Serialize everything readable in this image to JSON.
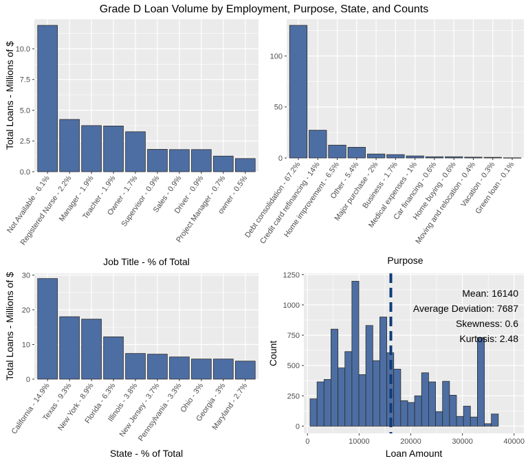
{
  "title": "Grade D Loan Volume by Employment, Purpose, State, and Counts",
  "colors": {
    "bar_fill": "#4d6ea3",
    "bar_stroke": "#2b2b2b",
    "panel_bg": "#ebebeb",
    "grid": "#ffffff",
    "mean_line": "#0f3c7a"
  },
  "chart_data": [
    {
      "type": "bar",
      "categories": [
        "Not Available - 6.1%",
        "Registered Nurse - 2.2%",
        "Manager - 1.9%",
        "Teacher - 1.9%",
        "Owner - 1.7%",
        "Supervisor - 0.9%",
        "Sales - 0.9%",
        "Driver - 0.9%",
        "Project Manager - 0.7%",
        "owner - 0.5%"
      ],
      "values": [
        11.9,
        4.25,
        3.75,
        3.72,
        3.25,
        1.82,
        1.8,
        1.8,
        1.27,
        1.07
      ],
      "xlabel": "Job Title - % of Total",
      "ylabel": "Total Loans - Millions of $",
      "ylim": [
        0,
        12.4
      ],
      "yticks": [
        0,
        2.5,
        5,
        7.5,
        10
      ],
      "ytick_labels": [
        "0.0",
        "2.5",
        "5.0",
        "7.5",
        "10.0"
      ],
      "grid": true
    },
    {
      "type": "bar",
      "categories": [
        "Debt consolidation - 67.2%",
        "Credit card refinancing - 14%",
        "Home improvement - 6.5%",
        "Other - 5.4%",
        "Major purchase - 2%",
        "Business - 1.7%",
        "Medical expenses - 1%",
        "Car financing - 0.6%",
        "Home buying - 0.6%",
        "Moving and relocation - 0.4%",
        "Vacation - 0.3%",
        "Green loan - 0.1%"
      ],
      "values": [
        130,
        27.2,
        12.6,
        10.5,
        3.9,
        3.3,
        2.0,
        1.2,
        1.2,
        0.8,
        0.6,
        0.2
      ],
      "xlabel": "Purpose",
      "ylabel": "",
      "ylim": [
        0,
        136
      ],
      "yticks": [
        0,
        50,
        100
      ],
      "ytick_labels": [
        "0",
        "50",
        "100"
      ],
      "grid": true
    },
    {
      "type": "bar",
      "categories": [
        "California - 14.9%",
        "Texas - 9.3%",
        "New York - 8.9%",
        "Florida - 6.3%",
        "Illinois - 3.8%",
        "New Jersey - 3.7%",
        "Pennsylvania - 3.3%",
        "Ohio - 3%",
        "Georgia - 3%",
        "Maryland - 2.7%"
      ],
      "values": [
        29.0,
        18.0,
        17.3,
        12.2,
        7.4,
        7.2,
        6.4,
        5.8,
        5.8,
        5.2
      ],
      "xlabel": "State - % of Total",
      "ylabel": "Total Loans - Millions of $",
      "ylim": [
        0,
        30.5
      ],
      "yticks": [
        0,
        10,
        20,
        30
      ],
      "ytick_labels": [
        "0",
        "10",
        "20",
        "30"
      ],
      "grid": true
    },
    {
      "type": "histogram",
      "bin_start": 500,
      "bin_width": 1350,
      "values": [
        225,
        365,
        385,
        800,
        480,
        615,
        1195,
        425,
        830,
        540,
        900,
        605,
        470,
        210,
        195,
        250,
        440,
        365,
        120,
        370,
        255,
        80,
        165,
        75,
        730,
        20,
        100
      ],
      "xlabel": "Loan Amount",
      "ylabel": "Count",
      "xlim": [
        -700,
        41900
      ],
      "ylim": [
        -60,
        1260
      ],
      "xticks": [
        0,
        10000,
        20000,
        30000,
        40000
      ],
      "xtick_labels": [
        "0",
        "10000",
        "20000",
        "30000",
        "40000"
      ],
      "yticks": [
        0,
        250,
        500,
        750,
        1000,
        1250
      ],
      "ytick_labels": [
        "0",
        "250",
        "500",
        "750",
        "1000",
        "1250"
      ],
      "mean": 16140,
      "annotations": [
        "Mean: 16140",
        "Average Deviation: 7687",
        "Skewness: 0.6",
        "Kurtosis: 2.48"
      ],
      "grid": true
    }
  ]
}
